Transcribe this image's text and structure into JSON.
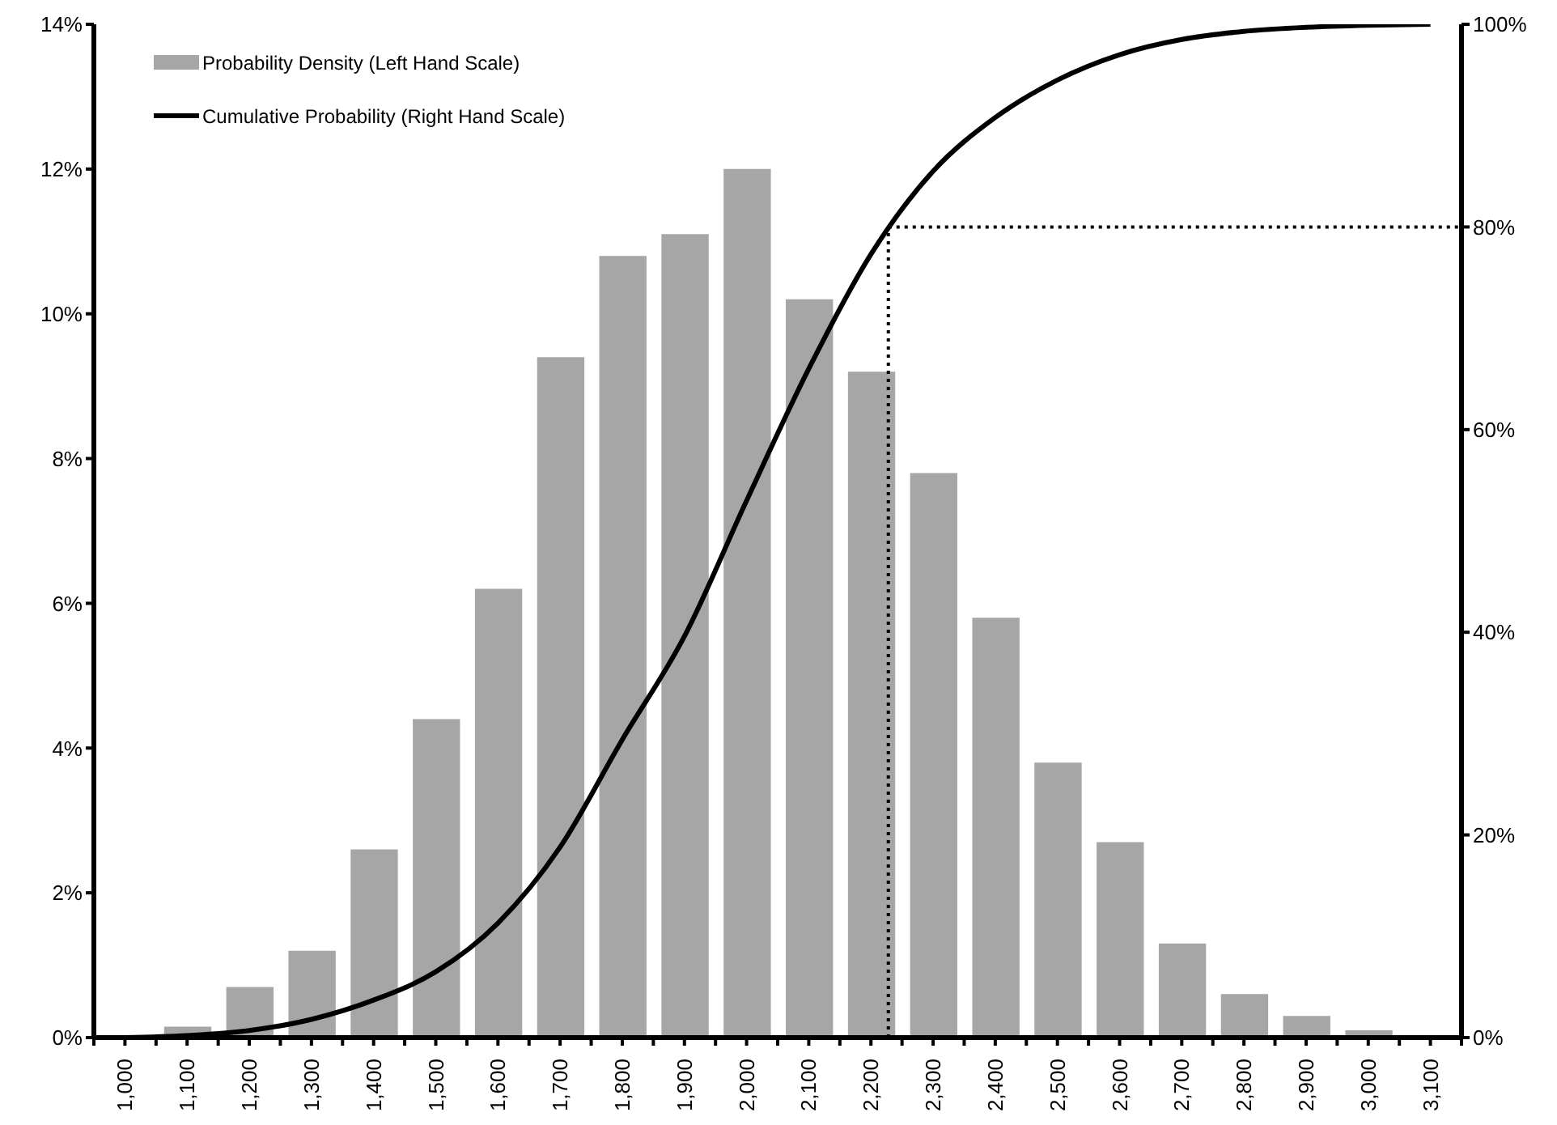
{
  "chart_data": {
    "type": "bar",
    "x": [
      1000,
      1100,
      1200,
      1300,
      1400,
      1500,
      1600,
      1700,
      1800,
      1900,
      2000,
      2100,
      2200,
      2300,
      2400,
      2500,
      2600,
      2700,
      2800,
      2900,
      3000,
      3100
    ],
    "xlim": [
      950,
      3150
    ],
    "xticks": [
      {
        "value": 950,
        "label": null
      },
      {
        "value": 1000,
        "label": "1,000"
      },
      {
        "value": 1050,
        "label": null
      },
      {
        "value": 1100,
        "label": "1,100"
      },
      {
        "value": 1150,
        "label": null
      },
      {
        "value": 1200,
        "label": "1,200"
      },
      {
        "value": 1250,
        "label": null
      },
      {
        "value": 1300,
        "label": "1,300"
      },
      {
        "value": 1350,
        "label": null
      },
      {
        "value": 1400,
        "label": "1,400"
      },
      {
        "value": 1450,
        "label": null
      },
      {
        "value": 1500,
        "label": "1,500"
      },
      {
        "value": 1550,
        "label": null
      },
      {
        "value": 1600,
        "label": "1,600"
      },
      {
        "value": 1650,
        "label": null
      },
      {
        "value": 1700,
        "label": "1,700"
      },
      {
        "value": 1750,
        "label": null
      },
      {
        "value": 1800,
        "label": "1,800"
      },
      {
        "value": 1850,
        "label": null
      },
      {
        "value": 1900,
        "label": "1,900"
      },
      {
        "value": 1950,
        "label": null
      },
      {
        "value": 2000,
        "label": "2,000"
      },
      {
        "value": 2050,
        "label": null
      },
      {
        "value": 2100,
        "label": "2,100"
      },
      {
        "value": 2150,
        "label": null
      },
      {
        "value": 2200,
        "label": "2,200"
      },
      {
        "value": 2250,
        "label": null
      },
      {
        "value": 2300,
        "label": "2,300"
      },
      {
        "value": 2350,
        "label": null
      },
      {
        "value": 2400,
        "label": "2,400"
      },
      {
        "value": 2450,
        "label": null
      },
      {
        "value": 2500,
        "label": "2,500"
      },
      {
        "value": 2550,
        "label": null
      },
      {
        "value": 2600,
        "label": "2,600"
      },
      {
        "value": 2650,
        "label": null
      },
      {
        "value": 2700,
        "label": "2,700"
      },
      {
        "value": 2750,
        "label": null
      },
      {
        "value": 2800,
        "label": "2,800"
      },
      {
        "value": 2850,
        "label": null
      },
      {
        "value": 2900,
        "label": "2,900"
      },
      {
        "value": 2950,
        "label": null
      },
      {
        "value": 3000,
        "label": "3,000"
      },
      {
        "value": 3050,
        "label": null
      },
      {
        "value": 3100,
        "label": "3,100"
      },
      {
        "value": 3150,
        "label": null
      }
    ],
    "ylim": [
      0,
      14
    ],
    "yticks": [
      {
        "value": 0,
        "label": "0%"
      },
      {
        "value": 2,
        "label": "2%"
      },
      {
        "value": 4,
        "label": "4%"
      },
      {
        "value": 6,
        "label": "6%"
      },
      {
        "value": 8,
        "label": "8%"
      },
      {
        "value": 10,
        "label": "10%"
      },
      {
        "value": 12,
        "label": "12%"
      },
      {
        "value": 14,
        "label": "14%"
      }
    ],
    "y2lim": [
      0,
      100
    ],
    "y2ticks": [
      {
        "value": 0,
        "label": "0%"
      },
      {
        "value": 20,
        "label": "20%"
      },
      {
        "value": 40,
        "label": "40%"
      },
      {
        "value": 60,
        "label": "60%"
      },
      {
        "value": 80,
        "label": "80%"
      },
      {
        "value": 100,
        "label": "100%"
      }
    ],
    "series": [
      {
        "name": "Probability Density (Left Hand Scale)",
        "color": "#a6a6a6",
        "values": [
          0,
          0.15,
          0.7,
          1.2,
          2.6,
          4.4,
          6.2,
          9.4,
          10.8,
          11.1,
          12,
          10.2,
          9.2,
          7.8,
          5.8,
          3.8,
          2.7,
          1.3,
          0.6,
          0.3,
          0.1,
          0
        ]
      },
      {
        "name": "Cumulative Probability (Right Hand Scale)",
        "type": "line",
        "axis": "y2",
        "color": "#000000",
        "line_style": "solid",
        "values": [
          0,
          0.2,
          0.7,
          1.8,
          3.7,
          6.5,
          11.3,
          18.8,
          29.4,
          39.6,
          53,
          66,
          77.3,
          85.5,
          90.8,
          94.5,
          97,
          98.5,
          99.3,
          99.7,
          99.9,
          100
        ]
      }
    ],
    "ref_lines": [
      {
        "axis": "x",
        "value": 2228,
        "color": "#000000",
        "line_style": "dotted"
      },
      {
        "axis": "y2",
        "value": 80,
        "color": "#000000",
        "line_style": "dotted"
      }
    ],
    "legend": "top left",
    "grid": false,
    "marker": "none"
  }
}
